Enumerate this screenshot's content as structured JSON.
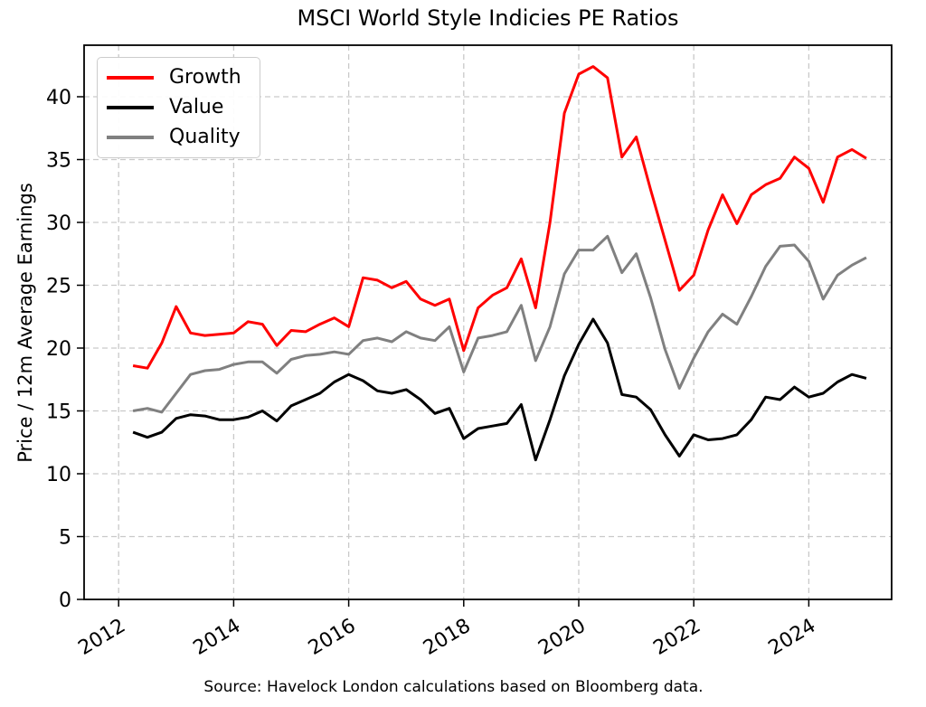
{
  "title": "MSCI World Style Indicies PE Ratios",
  "source_note": "Source: Havelock London calculations based on Bloomberg data.",
  "colors": {
    "background": "#ffffff",
    "grid": "#c9c9c9",
    "axis": "#000000",
    "growth": "#ff0000",
    "value": "#000000",
    "quality": "#808080"
  },
  "chart_data": {
    "type": "line",
    "title": "MSCI World Style Indicies PE Ratios",
    "xlabel": "",
    "ylabel": "Price / 12m Average Earnings",
    "grid": true,
    "legend_position": "upper-left",
    "legend": [
      "Growth",
      "Value",
      "Quality"
    ],
    "xlim": [
      2011.4,
      2025.44
    ],
    "ylim": [
      0,
      44.1
    ],
    "xticks": [
      2012,
      2014,
      2016,
      2018,
      2020,
      2022,
      2024
    ],
    "yticks": [
      0,
      5,
      10,
      15,
      20,
      25,
      30,
      35,
      40
    ],
    "x": [
      2012.25,
      2012.5,
      2012.75,
      2013.0,
      2013.25,
      2013.5,
      2013.75,
      2014.0,
      2014.25,
      2014.5,
      2014.75,
      2015.0,
      2015.25,
      2015.5,
      2015.75,
      2016.0,
      2016.25,
      2016.5,
      2016.75,
      2017.0,
      2017.25,
      2017.5,
      2017.75,
      2018.0,
      2018.25,
      2018.5,
      2018.75,
      2019.0,
      2019.25,
      2019.5,
      2019.75,
      2020.0,
      2020.25,
      2020.5,
      2020.75,
      2021.0,
      2021.25,
      2021.5,
      2021.75,
      2022.0,
      2022.25,
      2022.5,
      2022.75,
      2023.0,
      2023.25,
      2023.5,
      2023.75,
      2024.0,
      2024.25,
      2024.5,
      2024.75,
      2025.0
    ],
    "series": [
      {
        "name": "Growth",
        "color": "#ff0000",
        "values": [
          18.6,
          18.4,
          20.4,
          23.3,
          21.2,
          21.0,
          21.1,
          21.2,
          22.1,
          21.9,
          20.2,
          21.4,
          21.3,
          21.9,
          22.4,
          21.7,
          25.6,
          25.4,
          24.8,
          25.3,
          23.9,
          23.4,
          23.9,
          19.8,
          23.2,
          24.2,
          24.8,
          27.1,
          23.2,
          30.0,
          38.7,
          41.8,
          42.4,
          41.5,
          35.2,
          36.8,
          32.6,
          28.6,
          24.6,
          25.8,
          29.4,
          32.2,
          29.9,
          32.2,
          33.0,
          33.5,
          35.2,
          34.3,
          31.6,
          35.2,
          35.8,
          35.1
        ]
      },
      {
        "name": "Value",
        "color": "#000000",
        "values": [
          13.3,
          12.9,
          13.3,
          14.4,
          14.7,
          14.6,
          14.3,
          14.3,
          14.5,
          15.0,
          14.2,
          15.4,
          15.9,
          16.4,
          17.3,
          17.9,
          17.4,
          16.6,
          16.4,
          16.7,
          15.9,
          14.8,
          15.2,
          12.8,
          13.6,
          13.8,
          14.0,
          15.5,
          11.1,
          14.3,
          17.8,
          20.3,
          22.3,
          20.4,
          16.3,
          16.1,
          15.1,
          13.1,
          11.4,
          13.1,
          12.7,
          12.8,
          13.1,
          14.3,
          16.1,
          15.9,
          16.9,
          16.1,
          16.4,
          17.3,
          17.9,
          17.6
        ]
      },
      {
        "name": "Quality",
        "color": "#808080",
        "values": [
          15.0,
          15.2,
          14.9,
          16.4,
          17.9,
          18.2,
          18.3,
          18.7,
          18.9,
          18.9,
          18.0,
          19.1,
          19.4,
          19.5,
          19.7,
          19.5,
          20.6,
          20.8,
          20.5,
          21.3,
          20.8,
          20.6,
          21.7,
          18.1,
          20.8,
          21.0,
          21.3,
          23.4,
          19.0,
          21.7,
          25.9,
          27.8,
          27.8,
          28.9,
          26.0,
          27.5,
          24.0,
          19.9,
          16.8,
          19.2,
          21.3,
          22.7,
          21.9,
          24.1,
          26.5,
          28.1,
          28.2,
          26.9,
          23.9,
          25.8,
          26.6,
          27.2
        ]
      }
    ]
  }
}
